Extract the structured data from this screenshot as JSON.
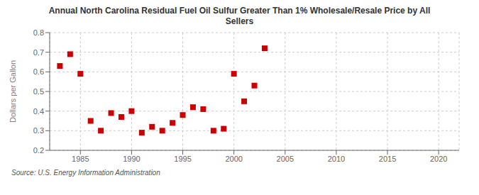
{
  "chart_data": {
    "type": "scatter",
    "title": "Annual North Carolina Residual Fuel Oil Sulfur Greater Than 1% Wholesale/Resale Price by All\nSellers",
    "y_label": "Dollars per Gallon",
    "annotations": [
      "Source: U.S. Energy Information Administration"
    ],
    "x": [
      1983,
      1984,
      1985,
      1986,
      1987,
      1988,
      1989,
      1990,
      1991,
      1992,
      1993,
      1994,
      1995,
      1996,
      1997,
      1998,
      1999,
      2000,
      2001,
      2002,
      2003
    ],
    "values": [
      0.63,
      0.69,
      0.59,
      0.35,
      0.3,
      0.39,
      0.37,
      0.4,
      0.29,
      0.32,
      0.3,
      0.34,
      0.38,
      0.42,
      0.41,
      0.3,
      0.31,
      0.59,
      0.45,
      0.53,
      0.72
    ],
    "color": "#cc0000",
    "marker": "square",
    "xlim": [
      1982,
      2022
    ],
    "ylim": [
      0.2,
      0.8
    ],
    "xticks": [
      1985,
      1990,
      1995,
      2000,
      2005,
      2010,
      2015,
      2020
    ],
    "yticks": [
      0.2,
      0.3,
      0.4,
      0.5,
      0.6,
      0.7,
      0.8
    ],
    "grid": true
  }
}
